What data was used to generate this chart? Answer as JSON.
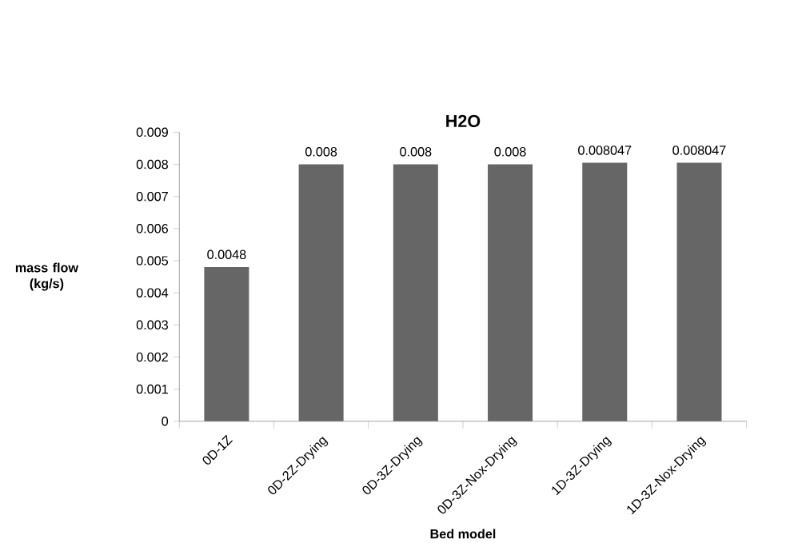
{
  "chart_data": {
    "type": "bar",
    "title": "H2O",
    "xlabel": "Bed model",
    "ylabel": "mass flow (kg/s)",
    "categories": [
      "0D-1Z",
      "0D-2Z-Drying",
      "0D-3Z-Drying",
      "0D-3Z-Nox-Drying",
      "1D-3Z-Drying",
      "1D-3Z-Nox-Drying"
    ],
    "values": [
      0.0048,
      0.008,
      0.008,
      0.008,
      0.008047,
      0.008047
    ],
    "value_labels": [
      "0.0048",
      "0.008",
      "0.008",
      "0.008",
      "0.008047",
      "0.008047"
    ],
    "color": "#666666",
    "ylim": [
      0,
      0.009
    ],
    "yticks": [
      0,
      0.001,
      0.002,
      0.003,
      0.004,
      0.005,
      0.006,
      0.007,
      0.008,
      0.009
    ],
    "grid": false
  }
}
